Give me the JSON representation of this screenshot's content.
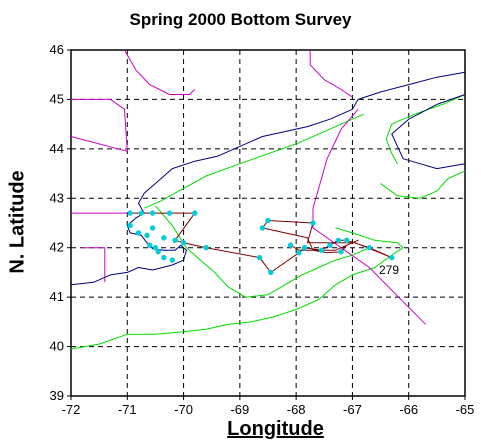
{
  "title": "Spring 2000 Bottom Survey",
  "xlabel": "Longitude",
  "ylabel": "N. Latitude",
  "colors": {
    "coastline": "#000080",
    "boundary": "#cc00cc",
    "depth_contour": "#00dd00",
    "cruise_track": "#800000",
    "station": "#00ccdd",
    "grid": "#000000"
  },
  "chart_data": {
    "type": "scatter",
    "xlim": [
      -72,
      -65
    ],
    "ylim": [
      39,
      46
    ],
    "x_ticks": [
      -72,
      -71,
      -70,
      -69,
      -68,
      -67,
      -66,
      -65
    ],
    "y_ticks": [
      39,
      40,
      41,
      42,
      43,
      44,
      45,
      46
    ],
    "grid": "dashed",
    "annotations": [
      {
        "text": "279",
        "lon": -66.35,
        "lat": 41.55
      }
    ],
    "track": [
      [
        -70.95,
        42.7
      ],
      [
        -70.75,
        42.7
      ],
      [
        -70.55,
        42.7
      ],
      [
        -70.25,
        42.7
      ],
      [
        -69.8,
        42.7
      ],
      [
        -70.15,
        42.15
      ],
      [
        -70.0,
        42.1
      ],
      [
        -69.6,
        42.0
      ],
      [
        -68.65,
        41.8
      ],
      [
        -68.45,
        41.5
      ],
      [
        -67.95,
        41.9
      ],
      [
        -67.85,
        42.0
      ],
      [
        -67.55,
        41.95
      ],
      [
        -67.4,
        42.05
      ],
      [
        -67.25,
        42.15
      ],
      [
        -67.1,
        42.15
      ],
      [
        -66.7,
        42.0
      ],
      [
        -66.3,
        41.8
      ],
      [
        -66.95,
        42.1
      ],
      [
        -67.2,
        42.1
      ],
      [
        -67.8,
        42.1
      ],
      [
        -67.7,
        42.5
      ],
      [
        -68.5,
        42.55
      ],
      [
        -68.6,
        42.4
      ],
      [
        -67.8,
        42.2
      ],
      [
        -67.7,
        41.95
      ],
      [
        -67.45,
        41.9
      ],
      [
        -67.2,
        41.92
      ],
      [
        -67.1,
        42.05
      ],
      [
        -66.9,
        42.15
      ],
      [
        -67.3,
        41.95
      ],
      [
        -67.95,
        41.95
      ],
      [
        -68.1,
        42.05
      ]
    ],
    "stations": [
      [
        -70.95,
        42.7
      ],
      [
        -70.75,
        42.7
      ],
      [
        -70.55,
        42.7
      ],
      [
        -70.25,
        42.7
      ],
      [
        -69.8,
        42.7
      ],
      [
        -70.15,
        42.15
      ],
      [
        -70.0,
        42.1
      ],
      [
        -69.6,
        42.0
      ],
      [
        -68.65,
        41.8
      ],
      [
        -68.45,
        41.5
      ],
      [
        -67.95,
        41.9
      ],
      [
        -67.85,
        42.0
      ],
      [
        -67.55,
        41.95
      ],
      [
        -67.4,
        42.05
      ],
      [
        -67.25,
        42.15
      ],
      [
        -67.1,
        42.15
      ],
      [
        -66.7,
        42.0
      ],
      [
        -66.3,
        41.8
      ],
      [
        -67.7,
        42.5
      ],
      [
        -68.5,
        42.55
      ],
      [
        -68.6,
        42.4
      ],
      [
        -67.2,
        41.92
      ],
      [
        -68.1,
        42.05
      ],
      [
        -70.45,
        41.92
      ],
      [
        -70.6,
        42.05
      ],
      [
        -70.8,
        42.3
      ],
      [
        -70.55,
        42.4
      ],
      [
        -70.35,
        41.8
      ],
      [
        -70.2,
        41.75
      ],
      [
        -70.65,
        42.25
      ],
      [
        -70.35,
        42.2
      ],
      [
        -70.95,
        42.45
      ],
      [
        -70.5,
        42.0
      ]
    ],
    "coastline": [
      [
        -72.0,
        41.25
      ],
      [
        -71.6,
        41.3
      ],
      [
        -71.3,
        41.45
      ],
      [
        -71.0,
        41.5
      ],
      [
        -70.8,
        41.6
      ],
      [
        -70.55,
        41.55
      ],
      [
        -70.2,
        41.65
      ],
      [
        -70.0,
        41.75
      ],
      [
        -69.95,
        41.95
      ],
      [
        -70.05,
        42.05
      ],
      [
        -70.15,
        41.95
      ],
      [
        -70.35,
        41.95
      ],
      [
        -70.55,
        41.98
      ],
      [
        -70.65,
        42.1
      ],
      [
        -70.75,
        42.25
      ],
      [
        -70.95,
        42.3
      ],
      [
        -71.0,
        42.45
      ],
      [
        -70.85,
        42.6
      ],
      [
        -70.7,
        42.7
      ],
      [
        -70.8,
        42.9
      ],
      [
        -70.7,
        43.1
      ],
      [
        -70.4,
        43.4
      ],
      [
        -70.2,
        43.6
      ],
      [
        -69.8,
        43.75
      ],
      [
        -69.4,
        43.85
      ],
      [
        -69.0,
        44.05
      ],
      [
        -68.6,
        44.25
      ],
      [
        -68.2,
        44.35
      ],
      [
        -67.8,
        44.45
      ],
      [
        -67.4,
        44.6
      ],
      [
        -67.0,
        44.8
      ],
      [
        -66.9,
        45.0
      ],
      [
        -66.5,
        45.15
      ],
      [
        -66.0,
        45.3
      ],
      [
        -65.5,
        45.45
      ],
      [
        -65.0,
        45.55
      ]
    ],
    "coastline_ns": [
      [
        -65.0,
        45.1
      ],
      [
        -65.5,
        44.9
      ],
      [
        -66.0,
        44.6
      ],
      [
        -66.3,
        44.3
      ],
      [
        -66.2,
        44.05
      ],
      [
        -66.1,
        43.8
      ],
      [
        -65.8,
        43.7
      ],
      [
        -65.5,
        43.6
      ],
      [
        -65.0,
        43.7
      ]
    ],
    "boundary_us_canada": [
      [
        -71.05,
        46.0
      ],
      [
        -70.85,
        45.6
      ],
      [
        -70.6,
        45.3
      ],
      [
        -70.25,
        45.1
      ],
      [
        -69.9,
        45.1
      ],
      [
        -69.8,
        45.2
      ]
    ],
    "boundary_maine_nb": [
      [
        -67.75,
        46.0
      ],
      [
        -67.75,
        45.7
      ],
      [
        -67.5,
        45.4
      ],
      [
        -67.2,
        45.2
      ],
      [
        -67.0,
        45.05
      ]
    ],
    "boundary_nh": [
      [
        -72.0,
        45.0
      ],
      [
        -71.3,
        45.0
      ],
      [
        -71.05,
        44.8
      ],
      [
        -71.0,
        43.95
      ],
      [
        -72.0,
        44.25
      ]
    ],
    "boundary_ma": [
      [
        -72.0,
        42.7
      ],
      [
        -71.0,
        42.7
      ]
    ],
    "boundary_ri": [
      [
        -71.8,
        42.0
      ],
      [
        -71.4,
        42.0
      ],
      [
        -71.4,
        41.3
      ]
    ],
    "hague_line": [
      [
        -66.9,
        44.8
      ],
      [
        -67.2,
        44.4
      ],
      [
        -67.45,
        43.8
      ],
      [
        -67.7,
        42.8
      ],
      [
        -67.7,
        42.4
      ],
      [
        -66.7,
        41.6
      ],
      [
        -65.7,
        40.45
      ]
    ],
    "contour_shelf": [
      [
        -72.0,
        39.95
      ],
      [
        -71.5,
        40.05
      ],
      [
        -71.0,
        40.25
      ],
      [
        -70.5,
        40.25
      ],
      [
        -70.0,
        40.3
      ],
      [
        -69.6,
        40.35
      ],
      [
        -69.2,
        40.45
      ],
      [
        -68.8,
        40.5
      ],
      [
        -68.4,
        40.6
      ],
      [
        -68.0,
        40.75
      ],
      [
        -67.6,
        40.95
      ],
      [
        -67.3,
        41.25
      ],
      [
        -67.0,
        41.45
      ],
      [
        -66.6,
        41.6
      ],
      [
        -66.3,
        41.85
      ],
      [
        -66.1,
        42.0
      ],
      [
        -66.2,
        42.1
      ],
      [
        -66.6,
        42.15
      ],
      [
        -67.0,
        42.3
      ],
      [
        -67.3,
        42.4
      ]
    ],
    "contour_gom": [
      [
        -70.7,
        42.8
      ],
      [
        -70.4,
        42.95
      ],
      [
        -70.0,
        43.2
      ],
      [
        -69.6,
        43.45
      ],
      [
        -69.0,
        43.7
      ],
      [
        -68.5,
        43.9
      ],
      [
        -68.0,
        44.1
      ],
      [
        -67.5,
        44.35
      ],
      [
        -67.0,
        44.6
      ],
      [
        -66.8,
        44.7
      ]
    ],
    "contour_georges": [
      [
        -70.5,
        42.85
      ],
      [
        -70.2,
        42.45
      ],
      [
        -69.95,
        42.0
      ],
      [
        -69.7,
        41.75
      ],
      [
        -69.45,
        41.5
      ],
      [
        -69.2,
        41.2
      ],
      [
        -68.9,
        41.0
      ],
      [
        -68.5,
        41.05
      ],
      [
        -68.2,
        41.25
      ],
      [
        -67.9,
        41.45
      ],
      [
        -67.6,
        41.6
      ],
      [
        -67.3,
        41.75
      ],
      [
        -67.0,
        41.85
      ],
      [
        -66.7,
        42.0
      ]
    ],
    "contour_browns": [
      [
        -66.5,
        43.3
      ],
      [
        -66.2,
        43.05
      ],
      [
        -65.8,
        43.0
      ],
      [
        -65.5,
        43.15
      ],
      [
        -65.3,
        43.4
      ],
      [
        -65.0,
        43.55
      ]
    ],
    "contour_ns": [
      [
        -65.0,
        45.1
      ],
      [
        -65.4,
        44.9
      ],
      [
        -65.9,
        44.7
      ],
      [
        -66.3,
        44.5
      ],
      [
        -66.4,
        44.2
      ],
      [
        -66.3,
        43.9
      ],
      [
        -66.2,
        43.7
      ]
    ]
  }
}
